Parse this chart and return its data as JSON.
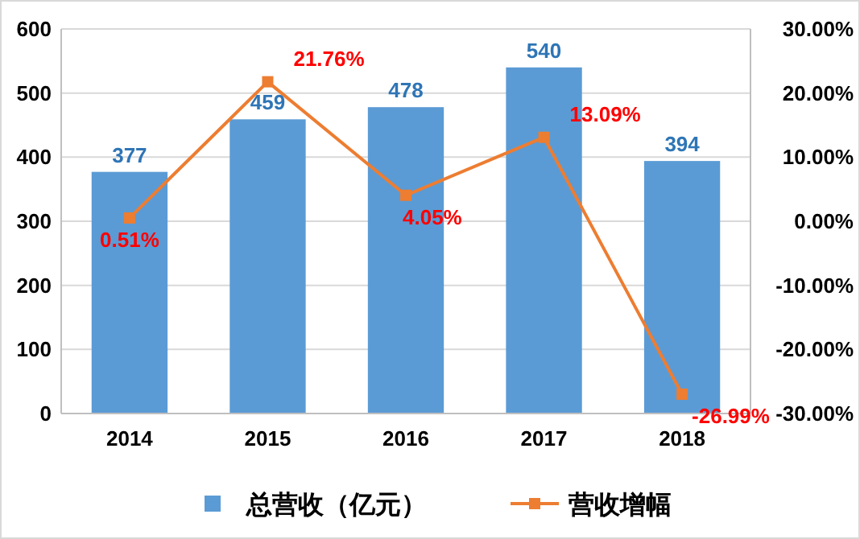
{
  "chart_data": {
    "type": "bar",
    "categories": [
      "2014",
      "2015",
      "2016",
      "2017",
      "2018"
    ],
    "series": [
      {
        "name": "总营收（亿元）",
        "color": "#5b9bd5",
        "values": [
          377,
          459,
          478,
          540,
          394
        ],
        "value_labels": [
          "377",
          "459",
          "478",
          "540",
          "394"
        ]
      },
      {
        "name": "营收增幅",
        "type": "line",
        "axis": "y2",
        "color": "#ed7d31",
        "values": [
          0.51,
          21.76,
          4.05,
          13.09,
          -26.99
        ],
        "value_labels": [
          "0.51%",
          "21.76%",
          "4.05%",
          "13.09%",
          "-26.99%"
        ]
      }
    ],
    "ylim": [
      0,
      600
    ],
    "yticks": [
      0,
      100,
      200,
      300,
      400,
      500,
      600
    ],
    "y2lim": [
      -30,
      30
    ],
    "y2ticks": [
      {
        "value": -30,
        "label": "-30.00%"
      },
      {
        "value": -20,
        "label": "-20.00%"
      },
      {
        "value": -10,
        "label": "-10.00%"
      },
      {
        "value": 0,
        "label": "0.00%"
      },
      {
        "value": 10,
        "label": "10.00%"
      },
      {
        "value": 20,
        "label": "20.00%"
      },
      {
        "value": 30,
        "label": "30.00%"
      }
    ],
    "grid": "y",
    "legend": "bottom",
    "marker": "square"
  }
}
